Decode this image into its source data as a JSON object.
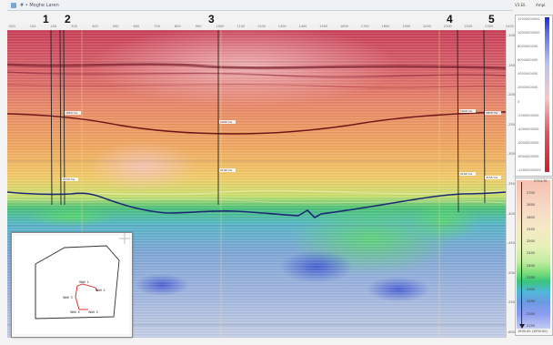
{
  "window": {
    "title": "# • Moghe Laren"
  },
  "top_ruler": {
    "ticks": [
      "000",
      "100",
      "200",
      "300",
      "400",
      "500",
      "600",
      "700",
      "800",
      "900",
      "1000",
      "1100",
      "1200",
      "1300",
      "1400",
      "1500",
      "1600",
      "1700",
      "1800",
      "1900",
      "2000",
      "2100",
      "2200",
      "2300",
      "2400"
    ]
  },
  "wells": [
    {
      "id": "w1",
      "label": "1"
    },
    {
      "id": "w2",
      "label": "2"
    },
    {
      "id": "w3",
      "label": "3"
    },
    {
      "id": "w4",
      "label": "4"
    },
    {
      "id": "w5",
      "label": "5"
    }
  ],
  "horizons": [
    {
      "name": "upper-horizon",
      "color": "#7a1a1a"
    },
    {
      "name": "lower-horizon",
      "color": "#1f2f78"
    }
  ],
  "well_tags": [
    "1850 ms",
    "1900 ms",
    "1920 ms",
    "1870 ms",
    "2150 ms",
    "2140 ms",
    "2160 ms",
    "2155 ms"
  ],
  "depth_axis": {
    "ticks": [
      "-100",
      "-150",
      "-200",
      "-250",
      "-300",
      "-350",
      "-400",
      "-450",
      "-500",
      "-550",
      "-600"
    ]
  },
  "colorbar_top": {
    "header_left": "V3 Ell.",
    "header_right": "Ampl.",
    "labels": [
      "12000000000",
      "10000000000",
      "8000000000",
      "6000000000",
      "4000000000",
      "2000000000",
      "0",
      "-2000000000",
      "-4000000000",
      "-6000000000",
      "-8000000000",
      "-10000000000"
    ],
    "colors": [
      "#1d2bd6",
      "#cc1f2a"
    ]
  },
  "colorbar_bottom": {
    "top_label": "2714.70",
    "labels": [
      "2700",
      "2650",
      "2600",
      "2550",
      "2500",
      "2450",
      "2400",
      "2350",
      "2300",
      "2250",
      "2200",
      "2150"
    ],
    "footer": "1930.00 (1930.00)"
  },
  "inset_map": {
    "labels": [
      "Well 1",
      "Well 2",
      "Well 3",
      "Well 4",
      "Well 5"
    ]
  }
}
